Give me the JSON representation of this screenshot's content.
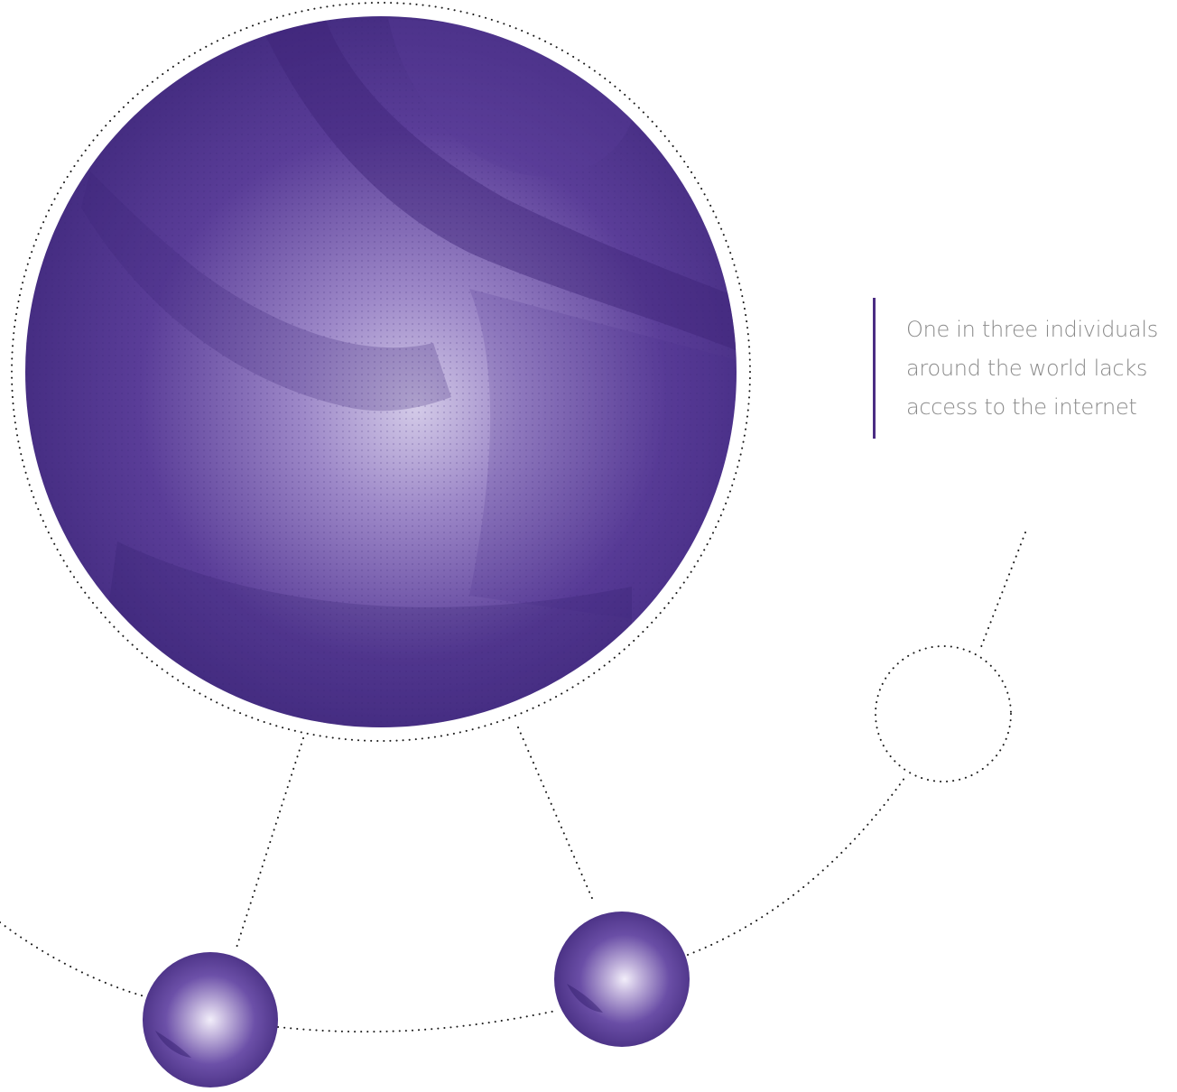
{
  "quote": {
    "lines": [
      "One in three individuals",
      "around the world lacks",
      "access to the internet"
    ]
  },
  "colors": {
    "accent": "#4b2c83",
    "globe_dark": "#3d2478",
    "globe_light": "#d9d2ec",
    "dots": "#1a1a1a",
    "text": "#8a8a8a",
    "background": "#ffffff"
  },
  "icons": {
    "large_globe": "globe-icon",
    "small_spheres": "sphere-icon"
  }
}
